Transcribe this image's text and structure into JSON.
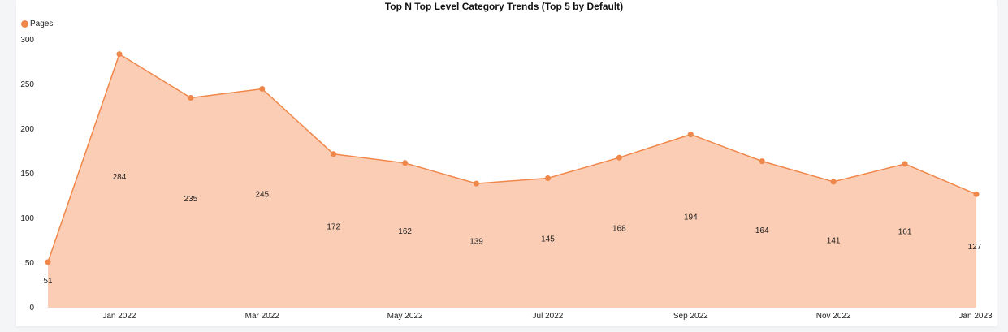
{
  "chart_data": {
    "type": "area",
    "title": "Top N Top Level Category Trends (Top 5 by Default)",
    "legend": {
      "position": "top-left",
      "entries": [
        "Pages"
      ]
    },
    "series": [
      {
        "name": "Pages",
        "values": [
          51,
          284,
          235,
          245,
          172,
          162,
          139,
          145,
          168,
          194,
          164,
          141,
          161,
          127
        ]
      }
    ],
    "x": [
      "2021-12",
      "2022-01",
      "2022-02",
      "2022-03",
      "2022-04",
      "2022-05",
      "2022-06",
      "2022-07",
      "2022-08",
      "2022-09",
      "2022-10",
      "2022-11",
      "2022-12",
      "2023-01"
    ],
    "x_tick_labels": [
      "Jan 2022",
      "Mar 2022",
      "May 2022",
      "Jul 2022",
      "Sep 2022",
      "Nov 2022",
      "Jan 2023"
    ],
    "y_ticks": [
      0,
      50,
      100,
      150,
      200,
      250,
      300
    ],
    "ylim": [
      0,
      300
    ],
    "grid": false,
    "colors": {
      "line": "#f0874a",
      "fill": "#fbcdb4"
    }
  }
}
